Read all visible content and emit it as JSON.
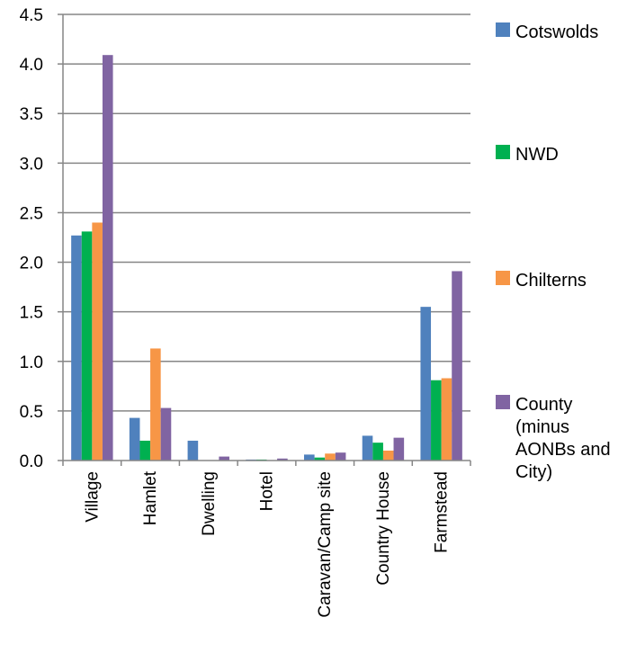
{
  "chart_data": {
    "type": "bar",
    "title": "",
    "xlabel": "",
    "ylabel": "",
    "ylim": [
      0,
      4.5
    ],
    "yticks": [
      "0.0",
      "0.5",
      "1.0",
      "1.5",
      "2.0",
      "2.5",
      "3.0",
      "3.5",
      "4.0",
      "4.5"
    ],
    "grid": true,
    "legend_position": "right",
    "categories": [
      "Village",
      "Hamlet",
      "Dwelling",
      "Hotel",
      "Caravan/Camp site",
      "Country House",
      "Farmstead"
    ],
    "series": [
      {
        "name": "Cotswolds",
        "color": "#4F81BD",
        "values": [
          2.27,
          0.43,
          0.2,
          0.01,
          0.06,
          0.25,
          1.55
        ]
      },
      {
        "name": "NWD",
        "color": "#00B050",
        "values": [
          2.31,
          0.2,
          0.0,
          0.01,
          0.03,
          0.18,
          0.81
        ]
      },
      {
        "name": "Chilterns",
        "color": "#F79646",
        "values": [
          2.4,
          1.13,
          0.0,
          0.0,
          0.07,
          0.1,
          0.83
        ]
      },
      {
        "name": "County (minus AONBs and City)",
        "color": "#8064A2",
        "values": [
          4.09,
          0.53,
          0.04,
          0.02,
          0.08,
          0.23,
          1.91
        ]
      }
    ],
    "legend": [
      {
        "lines": [
          "Cotswolds"
        ]
      },
      {
        "lines": [
          "NWD"
        ]
      },
      {
        "lines": [
          "Chilterns"
        ]
      },
      {
        "lines": [
          "County",
          "(minus",
          "AONBs and",
          "City)"
        ]
      }
    ]
  }
}
